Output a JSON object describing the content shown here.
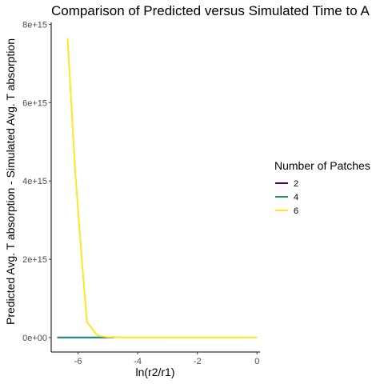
{
  "chart_data": {
    "type": "line",
    "title": "Comparison of Predicted versus Simulated Time to A",
    "xlabel": "ln(r2/r1)",
    "ylabel": "Predicted Avg. T absorption - Simulated Avg. T absorption",
    "xlim": [
      -6.9,
      0.1
    ],
    "ylim": [
      -370000000000000.0,
      8050000000000000.0
    ],
    "x_ticks": [
      -6,
      -4,
      -2,
      0
    ],
    "x_tick_labels": [
      "-6",
      "-4",
      "-2",
      "0"
    ],
    "y_ticks": [
      0,
      2000000000000000.0,
      4000000000000000.0,
      6000000000000000.0,
      8000000000000000.0
    ],
    "y_tick_labels": [
      "0e+00",
      "2e+15",
      "4e+15",
      "6e+15",
      "8e+15"
    ],
    "grid": false,
    "legend": {
      "title": "Number of Patches",
      "placement": "right"
    },
    "series": [
      {
        "name": "2",
        "color": "#440154",
        "x": [
          -6.7,
          -6.0,
          -5.3,
          -4.8
        ],
        "y": [
          0,
          0,
          0,
          0
        ]
      },
      {
        "name": "4",
        "color": "#21908C",
        "x": [
          -6.7,
          -6.0,
          -5.3,
          -4.8
        ],
        "y": [
          0,
          0,
          0,
          0
        ]
      },
      {
        "name": "6",
        "color": "#FDE725",
        "x": [
          -6.35,
          -6.1,
          -5.9,
          -5.7,
          -5.35,
          -5.0,
          -4.5,
          -3.0,
          -1.0,
          0.0
        ],
        "y": [
          7650000000000000.0,
          4300000000000000.0,
          2250000000000000.0,
          390000000000000.0,
          50000000000000.0,
          10000000000000.0,
          2000000000000.0,
          0,
          0,
          0
        ]
      }
    ]
  }
}
